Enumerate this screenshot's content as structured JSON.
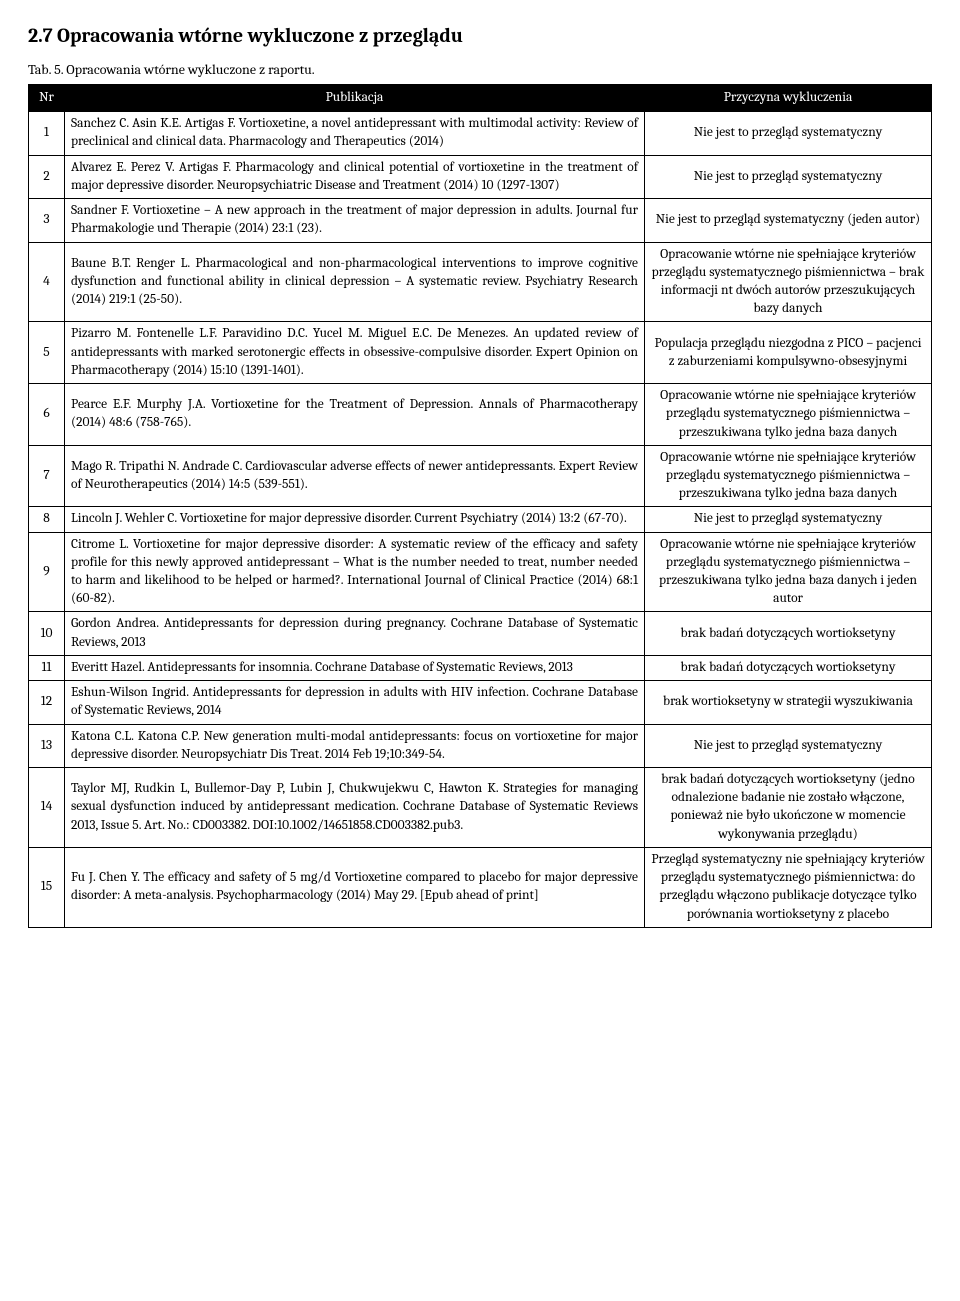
{
  "heading": "2.7   Opracowania wtórne wykluczone z przeglądu",
  "caption": "Tab. 5. Opracowania wtórne wykluczone z raportu.",
  "columns": [
    "Nr",
    "Publikacja",
    "Przyczyna wykluczenia"
  ],
  "rows": [
    {
      "nr": "1",
      "pub": "Sanchez C. Asin K.E. Artigas F. Vortioxetine, a novel antidepressant with multimodal activity: Review of preclinical and clinical data. Pharmacology and Therapeutics (2014)",
      "reason": "Nie jest to przegląd systematyczny"
    },
    {
      "nr": "2",
      "pub": "Alvarez E. Perez V. Artigas F. Pharmacology and clinical potential of vortioxetine in the treatment of major depressive disorder. Neuropsychiatric Disease and Treatment (2014) 10 (1297-1307)",
      "reason": "Nie jest to przegląd systematyczny"
    },
    {
      "nr": "3",
      "pub": "Sandner F. Vortioxetine – A new approach in the treatment of major depression in adults. Journal fur Pharmakologie und Therapie (2014) 23:1 (23).",
      "reason": "Nie jest to przegląd systematyczny (jeden autor)"
    },
    {
      "nr": "4",
      "pub": "Baune B.T. Renger L. Pharmacological and non-pharmacological interventions to improve cognitive dysfunction and functional ability in clinical depression – A systematic review. Psychiatry Research (2014) 219:1 (25-50).",
      "reason": "Opracowanie wtórne nie spełniające kryteriów przeglądu systematycznego piśmiennictwa – brak informacji nt dwóch autorów przeszukujących bazy danych"
    },
    {
      "nr": "5",
      "pub": "Pizarro M. Fontenelle L.F. Paravidino D.C. Yucel M. Miguel E.C. De Menezes. An updated review of antidepressants with marked serotonergic effects in obsessive-compulsive disorder. Expert Opinion on Pharmacotherapy (2014) 15:10 (1391-1401).",
      "reason": "Populacja przeglądu niezgodna z PICO – pacjenci z zaburzeniami kompulsywno-obsesyjnymi"
    },
    {
      "nr": "6",
      "pub": "Pearce E.F. Murphy J.A. Vortioxetine for the Treatment of Depression. Annals of Pharmacotherapy (2014) 48:6 (758-765).",
      "reason": "Opracowanie wtórne nie spełniające kryteriów przeglądu systematycznego piśmiennictwa – przeszukiwana tylko jedna baza danych"
    },
    {
      "nr": "7",
      "pub": "Mago R. Tripathi N. Andrade C. Cardiovascular adverse effects of newer antidepressants. Expert Review of Neurotherapeutics (2014) 14:5 (539-551).",
      "reason": "Opracowanie wtórne nie spełniające kryteriów przeglądu systematycznego piśmiennictwa – przeszukiwana tylko jedna baza danych"
    },
    {
      "nr": "8",
      "pub": "Lincoln J. Wehler C. Vortioxetine for major depressive disorder. Current Psychiatry (2014) 13:2 (67-70).",
      "reason": "Nie jest to przegląd systematyczny"
    },
    {
      "nr": "9",
      "pub": "Citrome L. Vortioxetine for major depressive disorder: A systematic review of the efficacy and safety profile for this newly approved antidepressant – What is the number needed to treat, number needed to harm and likelihood to be helped or harmed?. International Journal of Clinical Practice (2014) 68:1 (60-82).",
      "reason": "Opracowanie wtórne nie spełniające kryteriów przeglądu systematycznego piśmiennictwa – przeszukiwana tylko jedna baza danych i jeden autor"
    },
    {
      "nr": "10",
      "pub": "Gordon Andrea. Antidepressants for depression during pregnancy. Cochrane Database of Systematic Reviews, 2013",
      "reason": "brak badań dotyczących wortioksetyny"
    },
    {
      "nr": "11",
      "pub": "Everitt Hazel. Antidepressants for insomnia. Cochrane Database of Systematic Reviews, 2013",
      "reason": "brak badań dotyczących wortioksetyny"
    },
    {
      "nr": "12",
      "pub": "Eshun-Wilson Ingrid. Antidepressants for depression in adults with HIV infection. Cochrane Database of Systematic Reviews, 2014",
      "reason": "brak wortioksetyny w strategii wyszukiwania"
    },
    {
      "nr": "13",
      "pub": "Katona C.L. Katona C.P. New generation multi-modal antidepressants: focus on vortioxetine for major depressive disorder. Neuropsychiatr Dis Treat. 2014 Feb 19;10:349-54.",
      "reason": "Nie jest to przegląd systematyczny"
    },
    {
      "nr": "14",
      "pub": "Taylor MJ, Rudkin L, Bullemor-Day P, Lubin J, Chukwujekwu C, Hawton K. Strategies for managing sexual dysfunction induced by antidepressant medication. Cochrane Database of Systematic Reviews 2013, Issue 5. Art. No.: CD003382. DOI:10.1002/14651858.CD003382.pub3.",
      "reason": "brak badań dotyczących wortioksetyny (jedno odnalezione badanie nie zostało włączone, ponieważ nie było ukończone w momencie wykonywania przeglądu)"
    },
    {
      "nr": "15",
      "pub": "Fu J. Chen Y. The efficacy and safety of 5 mg/d Vortioxetine compared to placebo for major depressive disorder: A meta-analysis. Psychopharmacology (2014) May 29. [Epub ahead of print]",
      "reason": "Przegląd systematyczny nie spełniający kryteriów przeglądu systematycznego piśmiennictwa: do przeglądu włączono publikacje dotyczące tylko porównania wortioksetyny z placebo"
    }
  ]
}
